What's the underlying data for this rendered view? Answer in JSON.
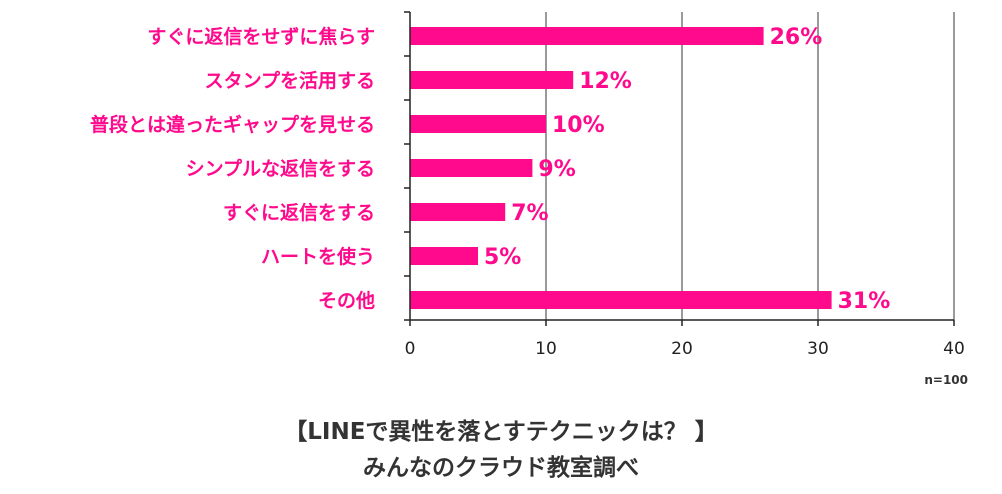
{
  "chart_data": {
    "type": "bar",
    "orientation": "horizontal",
    "categories": [
      "すぐに返信をせずに焦らす",
      "スタンプを活用する",
      "普段とは違ったギャップを見せる",
      "シンプルな返信をする",
      "すぐに返信をする",
      "ハートを使う",
      "その他"
    ],
    "values": [
      26,
      12,
      10,
      9,
      7,
      5,
      31
    ],
    "value_labels": [
      "26%",
      "12%",
      "10%",
      "9%",
      "7%",
      "5%",
      "31%"
    ],
    "xlim": [
      0,
      40
    ],
    "x_ticks": [
      "0",
      "10",
      "20",
      "30",
      "40"
    ],
    "grid": "vertical",
    "sample_note": "n=100",
    "bar_color": "#ff0a8c",
    "label_color": "#ff0a8c"
  },
  "caption": {
    "line1": "【LINEで異性を落とすテクニックは？ 】",
    "line2": "みんなのクラウド教室調べ"
  }
}
